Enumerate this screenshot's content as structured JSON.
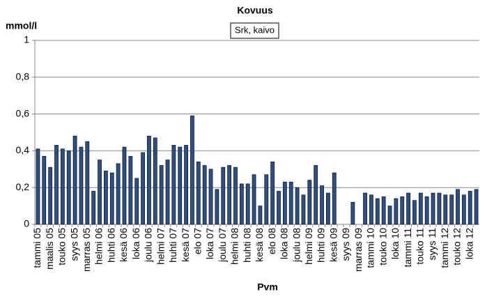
{
  "chart_data": {
    "type": "bar",
    "title": "Kovuus",
    "y_label": "mmol/l",
    "x_label": "Pvm",
    "categories": [
      "tammi 05",
      null,
      "maalis 05",
      null,
      "touko 05",
      null,
      "syys 05",
      null,
      "marras 05",
      null,
      "helmi 06",
      null,
      "huhti 06",
      null,
      "kesä 06",
      null,
      "loka 06",
      null,
      "joulu 06",
      null,
      "helmi 07",
      null,
      "huhti 07",
      null,
      "kesä 07",
      null,
      "elo 07",
      null,
      "loka 07",
      null,
      "joulu 07",
      null,
      "helmi 08",
      null,
      "huhti 08",
      null,
      "kesä 08",
      null,
      "elo 08",
      null,
      "loka 08",
      null,
      "joulu 08",
      null,
      "helmi 09",
      null,
      "huhti 09",
      null,
      "kesä 09",
      null,
      "syys 09",
      null,
      "marras 09",
      null,
      "tammi 10",
      null,
      "touko 10",
      null,
      "loka 10",
      null,
      "tammi 11",
      null,
      "touko 11",
      null,
      "syys 11",
      null,
      "tammi 12",
      null,
      "touko 12",
      null,
      "loka 12",
      null
    ],
    "series": [
      {
        "name": "Srk, kaivo",
        "color": "#2f4f80",
        "values": [
          0.41,
          0.37,
          0.31,
          0.43,
          0.41,
          0.4,
          0.48,
          0.42,
          0.45,
          0.18,
          0.35,
          0.29,
          0.28,
          0.33,
          0.42,
          0.37,
          0.25,
          0.39,
          0.48,
          0.47,
          0.32,
          0.35,
          0.43,
          0.42,
          0.43,
          0.59,
          0.34,
          0.32,
          0.3,
          0.19,
          0.31,
          0.32,
          0.31,
          0.22,
          0.22,
          0.27,
          0.1,
          0.27,
          0.34,
          0.18,
          0.23,
          0.23,
          0.2,
          0.16,
          0.24,
          0.32,
          0.21,
          0.17,
          0.28,
          null,
          null,
          0.12,
          null,
          0.17,
          0.16,
          0.14,
          0.15,
          0.1,
          0.14,
          0.15,
          0.17,
          0.13,
          0.17,
          0.15,
          0.17,
          0.17,
          0.16,
          0.16,
          0.19,
          0.16,
          0.18,
          0.19
        ]
      }
    ],
    "ylim": [
      0,
      1
    ],
    "yticks": [
      0,
      {
        "value": 0.2,
        "label": "0,2"
      },
      {
        "value": 0.4,
        "label": "0,4"
      },
      {
        "value": 0.6,
        "label": "0,6"
      },
      {
        "value": 0.8,
        "label": "0,8"
      },
      1
    ],
    "grid": true
  }
}
